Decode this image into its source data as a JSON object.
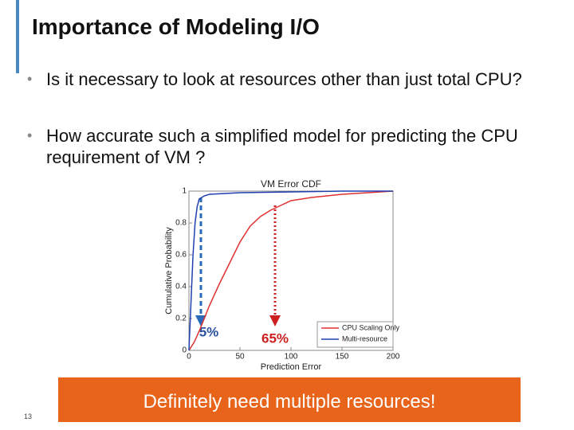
{
  "title": "Importance of Modeling I/O",
  "bullets": [
    "Is it necessary to look at resources other than just total CPU?",
    "How accurate such a simplified model for predicting the CPU requirement of VM ?"
  ],
  "chart": {
    "type": "line",
    "title": "VM Error CDF",
    "xlabel": "Prediction Error",
    "ylabel": "Cumulative Probability",
    "xlim": [
      0,
      200
    ],
    "ylim": [
      0,
      1
    ],
    "xticks": [
      0,
      50,
      100,
      150,
      200
    ],
    "yticks": [
      0,
      0.2,
      0.4,
      0.6,
      0.8,
      1
    ],
    "series": [
      {
        "name": "CPU Scaling Only",
        "color": "#e03030",
        "x": [
          0,
          5,
          10,
          20,
          30,
          40,
          50,
          60,
          70,
          80,
          90,
          100,
          120,
          150,
          200
        ],
        "values": [
          0,
          0.05,
          0.12,
          0.28,
          0.42,
          0.55,
          0.68,
          0.78,
          0.84,
          0.88,
          0.91,
          0.94,
          0.96,
          0.98,
          1
        ]
      },
      {
        "name": "Multi-resource",
        "color": "#2040b0",
        "x": [
          0,
          2,
          4,
          6,
          8,
          10,
          15,
          20,
          50,
          100,
          150,
          200
        ],
        "values": [
          0,
          0.3,
          0.6,
          0.8,
          0.9,
          0.95,
          0.97,
          0.98,
          0.99,
          0.995,
          1,
          1
        ]
      }
    ],
    "annotations": [
      "5%",
      "65%"
    ]
  },
  "banner": "Definitely need multiple resources!",
  "page_number": "13"
}
